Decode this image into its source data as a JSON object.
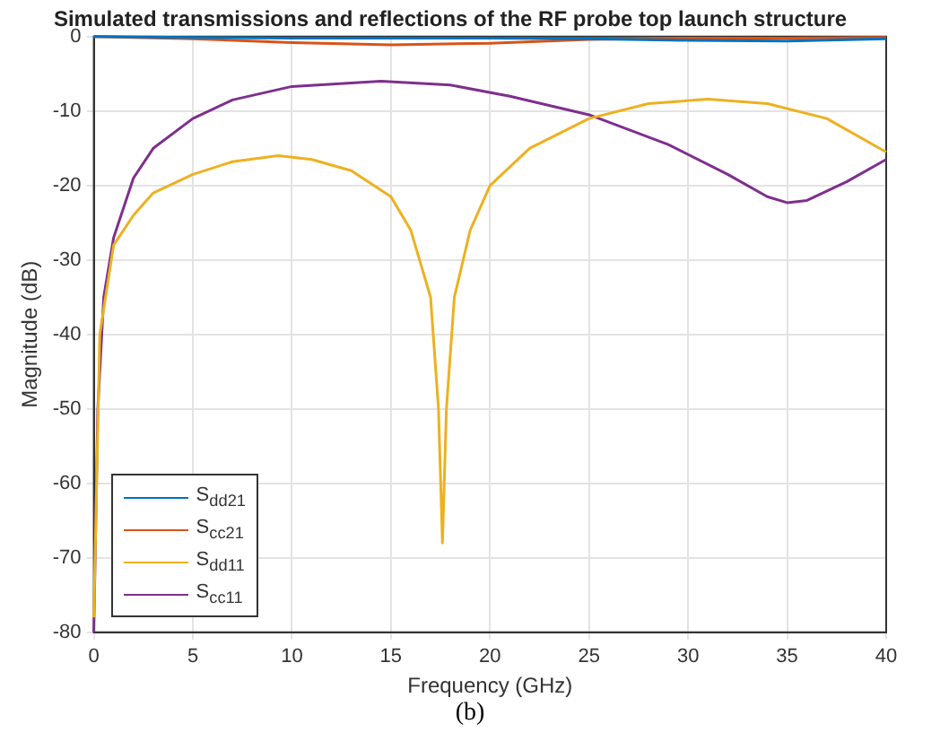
{
  "chart_data": {
    "type": "line",
    "title": "Simulated transmissions and reflections of the RF probe top launch structure",
    "xlabel": "Frequency (GHz)",
    "ylabel": "Magnitude (dB)",
    "annotations": [
      "(b)"
    ],
    "xlim": [
      0,
      40
    ],
    "xticks": [
      0,
      5,
      10,
      15,
      20,
      25,
      30,
      35,
      40
    ],
    "ylim": [
      -80,
      0
    ],
    "yticks": [
      -80,
      -70,
      -60,
      -50,
      -40,
      -30,
      -20,
      -10,
      0
    ],
    "grid": true,
    "legend": "bottom left",
    "marker": "none",
    "line_style": "solid",
    "series": [
      {
        "name": "S$_{dd21}$",
        "color": "#0072bd",
        "x": [
          0,
          5,
          10,
          15,
          20,
          25,
          30,
          35,
          40
        ],
        "values": [
          0,
          -0.1,
          -0.2,
          -0.2,
          -0.2,
          -0.3,
          -0.5,
          -0.6,
          -0.3
        ]
      },
      {
        "name": "S$_{cc21}$",
        "color": "#d95319",
        "x": [
          0,
          5,
          10,
          15,
          20,
          25,
          30,
          35,
          40
        ],
        "values": [
          0,
          -0.3,
          -0.8,
          -1.1,
          -0.9,
          -0.4,
          -0.2,
          -0.2,
          -0.1
        ]
      },
      {
        "name": "S$_{dd11}$",
        "color": "#edb120",
        "x": [
          0,
          0.3,
          1,
          2,
          3,
          5,
          7,
          9.3,
          11,
          13,
          15,
          16,
          17,
          17.4,
          17.6,
          17.8,
          18.2,
          19,
          20,
          22,
          25,
          28,
          31,
          34,
          37,
          40
        ],
        "values": [
          -78,
          -40,
          -28,
          -24,
          -21,
          -18.5,
          -16.8,
          -16,
          -16.5,
          -18,
          -21.5,
          -26,
          -35,
          -50,
          -68,
          -50,
          -35,
          -26,
          -20,
          -15,
          -11,
          -9,
          -8.4,
          -9,
          -11,
          -15.5
        ]
      },
      {
        "name": "S$_{cc11}$",
        "color": "#7e2f8e",
        "x": [
          0,
          0.2,
          0.5,
          1,
          2,
          3,
          5,
          7,
          10,
          14.5,
          18,
          21,
          25,
          29,
          32,
          34,
          35,
          36,
          38,
          40
        ],
        "values": [
          -80,
          -50,
          -35,
          -27,
          -19,
          -15,
          -11,
          -8.5,
          -6.7,
          -6,
          -6.5,
          -8,
          -10.5,
          -14.5,
          -18.5,
          -21.5,
          -22.3,
          -22,
          -19.5,
          -16.5
        ]
      }
    ]
  }
}
